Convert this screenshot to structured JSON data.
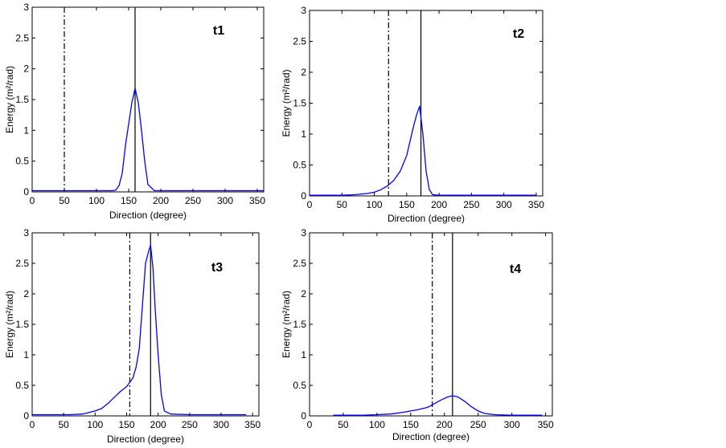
{
  "chart_data": [
    {
      "type": "line",
      "label": "t1",
      "xlabel": "Direction (degree)",
      "ylabel": "Energy (m²/rad)",
      "xlim": [
        0,
        360
      ],
      "ylim": [
        0,
        3
      ],
      "xticks": [
        0,
        50,
        100,
        150,
        200,
        250,
        300,
        350
      ],
      "yticks": [
        0,
        0.5,
        1,
        1.5,
        2,
        2.5,
        3
      ],
      "grid": false,
      "series_color": "#0000ff",
      "vlines": [
        {
          "style": "dash-dot",
          "x": 50
        },
        {
          "style": "solid",
          "x": 160
        }
      ],
      "series": [
        {
          "x": [
            0,
            100,
            125,
            130,
            135,
            140,
            145,
            150,
            155,
            160,
            165,
            170,
            175,
            180,
            190,
            200,
            250,
            300,
            360
          ],
          "y": [
            0.02,
            0.02,
            0.02,
            0.03,
            0.1,
            0.3,
            0.75,
            1.1,
            1.45,
            1.68,
            1.45,
            1.0,
            0.5,
            0.12,
            0.02,
            0.02,
            0.02,
            0.02,
            0.02
          ]
        }
      ]
    },
    {
      "type": "line",
      "label": "t2",
      "xlabel": "Direction (degree)",
      "ylabel": "Energy (m²/rad)",
      "xlim": [
        0,
        360
      ],
      "ylim": [
        0,
        3
      ],
      "xticks": [
        0,
        50,
        100,
        150,
        200,
        250,
        300,
        350
      ],
      "yticks": [
        0,
        0.5,
        1,
        1.5,
        2,
        2.5,
        3
      ],
      "grid": false,
      "series_color": "#0000ff",
      "vlines": [
        {
          "style": "dash-dot",
          "x": 122
        },
        {
          "style": "solid",
          "x": 172
        }
      ],
      "series": [
        {
          "x": [
            0,
            50,
            70,
            90,
            100,
            110,
            120,
            130,
            140,
            150,
            160,
            165,
            170,
            175,
            180,
            185,
            190,
            200,
            250,
            300,
            350
          ],
          "y": [
            0.01,
            0.01,
            0.02,
            0.04,
            0.06,
            0.1,
            0.16,
            0.25,
            0.4,
            0.65,
            1.1,
            1.3,
            1.45,
            1.0,
            0.4,
            0.1,
            0.02,
            0.01,
            0.01,
            0.01,
            0.01
          ]
        }
      ]
    },
    {
      "type": "line",
      "label": "t3",
      "xlabel": "Direction (degree)",
      "ylabel": "Energy (m²/rad)",
      "xlim": [
        0,
        360
      ],
      "ylim": [
        0,
        3
      ],
      "xticks": [
        0,
        50,
        100,
        150,
        200,
        250,
        300,
        350
      ],
      "yticks": [
        0,
        0.5,
        1,
        1.5,
        2,
        2.5,
        3
      ],
      "grid": false,
      "series_color": "#0000ff",
      "vlines": [
        {
          "style": "dash-dot",
          "x": 155
        },
        {
          "style": "solid",
          "x": 188
        }
      ],
      "series": [
        {
          "x": [
            0,
            60,
            80,
            100,
            110,
            120,
            130,
            140,
            150,
            160,
            165,
            170,
            175,
            180,
            185,
            188,
            192,
            195,
            200,
            205,
            210,
            220,
            250,
            300,
            340
          ],
          "y": [
            0.02,
            0.02,
            0.03,
            0.08,
            0.12,
            0.2,
            0.3,
            0.4,
            0.48,
            0.62,
            0.8,
            1.1,
            1.8,
            2.5,
            2.7,
            2.8,
            2.4,
            1.8,
            1.0,
            0.35,
            0.08,
            0.03,
            0.02,
            0.02,
            0.02
          ]
        }
      ]
    },
    {
      "type": "line",
      "label": "t4",
      "xlabel": "Direction (degree)",
      "ylabel": "Energy (m²/rad)",
      "xlim": [
        0,
        360
      ],
      "ylim": [
        0,
        3
      ],
      "xticks": [
        0,
        50,
        100,
        150,
        200,
        250,
        300,
        350
      ],
      "yticks": [
        0,
        0.5,
        1,
        1.5,
        2,
        2.5,
        3
      ],
      "grid": false,
      "series_color": "#0000ff",
      "vlines": [
        {
          "style": "dash-dot",
          "x": 182
        },
        {
          "style": "solid",
          "x": 212
        }
      ],
      "series": [
        {
          "x": [
            35,
            80,
            100,
            120,
            140,
            160,
            175,
            185,
            195,
            205,
            212,
            220,
            230,
            240,
            250,
            260,
            275,
            300,
            345
          ],
          "y": [
            0.01,
            0.01,
            0.02,
            0.03,
            0.06,
            0.1,
            0.14,
            0.2,
            0.26,
            0.31,
            0.33,
            0.31,
            0.24,
            0.15,
            0.08,
            0.04,
            0.02,
            0.01,
            0.01
          ]
        }
      ]
    }
  ]
}
